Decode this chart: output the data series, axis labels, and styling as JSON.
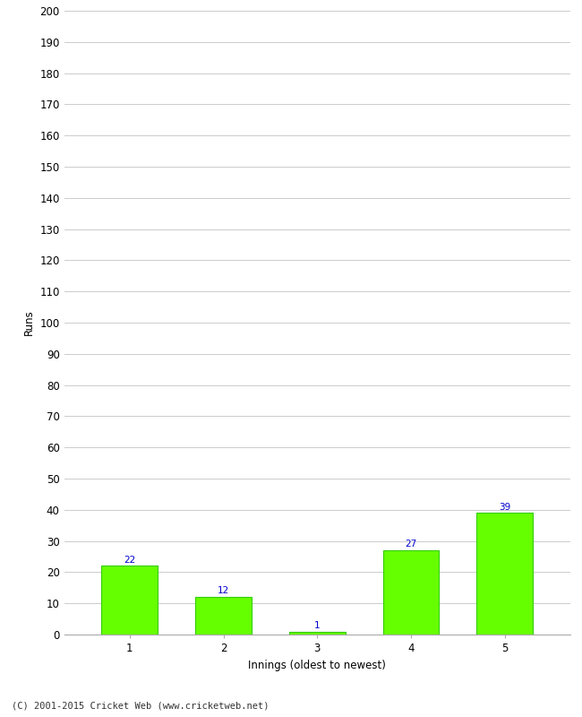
{
  "categories": [
    "1",
    "2",
    "3",
    "4",
    "5"
  ],
  "values": [
    22,
    12,
    1,
    27,
    39
  ],
  "bar_color": "#66ff00",
  "bar_edge_color": "#33cc00",
  "ylabel": "Runs",
  "xlabel": "Innings (oldest to newest)",
  "ylim": [
    0,
    200
  ],
  "yticks": [
    0,
    10,
    20,
    30,
    40,
    50,
    60,
    70,
    80,
    90,
    100,
    110,
    120,
    130,
    140,
    150,
    160,
    170,
    180,
    190,
    200
  ],
  "label_color": "#0000cc",
  "label_fontsize": 7.5,
  "axis_fontsize": 8.5,
  "tick_fontsize": 8.5,
  "copyright": "(C) 2001-2015 Cricket Web (www.cricketweb.net)",
  "background_color": "#ffffff",
  "grid_color": "#cccccc"
}
